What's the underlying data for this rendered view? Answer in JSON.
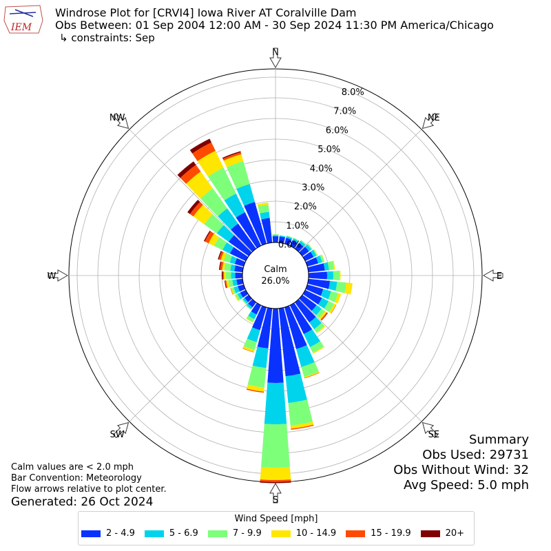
{
  "header": {
    "title": "Windrose Plot for [CRVI4] Iowa River  AT Coralville Dam",
    "obs_between": "Obs Between: 01 Sep 2004 12:00 AM - 30 Sep 2024 11:30 PM America/Chicago",
    "constraints": "↳ constraints: Sep",
    "logo_text": "IEM"
  },
  "summary": {
    "heading": "Summary",
    "obs_used": "Obs Used: 29731",
    "obs_without_wind": "Obs Without Wind: 32",
    "avg_speed": "Avg Speed: 5.0 mph"
  },
  "notes": {
    "calm": "Calm values are < 2.0 mph",
    "convention": "Bar Convention: Meteorology",
    "flow": "Flow arrows relative to plot center."
  },
  "generated": "Generated: 26 Oct 2024",
  "chart_data": {
    "type": "windrose",
    "title": "Windrose Plot for [CRVI4] Iowa River  AT Coralville Dam",
    "calm_label": "Calm",
    "calm_percent": "26.0%",
    "radial_ticks": [
      "0.0%",
      "1.0%",
      "2.0%",
      "3.0%",
      "4.0%",
      "5.0%",
      "6.0%",
      "7.0%",
      "8.0%"
    ],
    "radial_range": [
      0,
      8.4
    ],
    "directions": [
      "N",
      "NE",
      "E",
      "SE",
      "S",
      "SW",
      "W",
      "NW"
    ],
    "legend_title": "Wind Speed [mph]",
    "bins": [
      {
        "label": "2 - 4.9",
        "color": "#0a32ff"
      },
      {
        "label": "5 - 6.9",
        "color": "#00d4ec"
      },
      {
        "label": "7 - 9.9",
        "color": "#7dff7a"
      },
      {
        "label": "10 - 14.9",
        "color": "#ffe600"
      },
      {
        "label": "15 - 19.9",
        "color": "#ff4a00"
      },
      {
        "label": "20+",
        "color": "#800000"
      }
    ],
    "sectors": [
      {
        "dir": 0,
        "values": [
          0.3,
          0.05,
          0.05,
          0,
          0,
          0
        ]
      },
      {
        "dir": 10,
        "values": [
          0.3,
          0.05,
          0,
          0,
          0,
          0
        ]
      },
      {
        "dir": 20,
        "values": [
          0.3,
          0.08,
          0.03,
          0,
          0,
          0
        ]
      },
      {
        "dir": 30,
        "values": [
          0.3,
          0.1,
          0.03,
          0,
          0,
          0
        ]
      },
      {
        "dir": 40,
        "values": [
          0.35,
          0.12,
          0.05,
          0,
          0,
          0
        ]
      },
      {
        "dir": 50,
        "values": [
          0.4,
          0.15,
          0.05,
          0,
          0,
          0
        ]
      },
      {
        "dir": 60,
        "values": [
          0.45,
          0.15,
          0.05,
          0.02,
          0,
          0
        ]
      },
      {
        "dir": 70,
        "values": [
          0.55,
          0.2,
          0.1,
          0.02,
          0,
          0
        ]
      },
      {
        "dir": 80,
        "values": [
          0.8,
          0.2,
          0.25,
          0.05,
          0,
          0
        ]
      },
      {
        "dir": 90,
        "values": [
          0.9,
          0.3,
          0.3,
          0.05,
          0,
          0
        ]
      },
      {
        "dir": 100,
        "values": [
          1.05,
          0.35,
          0.45,
          0.3,
          0,
          0
        ]
      },
      {
        "dir": 110,
        "values": [
          0.8,
          0.4,
          0.35,
          0.15,
          0,
          0
        ]
      },
      {
        "dir": 120,
        "values": [
          0.9,
          0.35,
          0.3,
          0.1,
          0.02,
          0
        ]
      },
      {
        "dir": 130,
        "values": [
          0.85,
          0.3,
          0.2,
          0.1,
          0.05,
          0.02
        ]
      },
      {
        "dir": 140,
        "values": [
          1.2,
          0.4,
          0.2,
          0.05,
          0,
          0
        ]
      },
      {
        "dir": 150,
        "values": [
          1.55,
          0.7,
          0.3,
          0.05,
          0,
          0
        ]
      },
      {
        "dir": 160,
        "values": [
          2.1,
          0.9,
          0.5,
          0.05,
          0.02,
          0
        ]
      },
      {
        "dir": 170,
        "values": [
          3.3,
          1.3,
          1.1,
          0.15,
          0.05,
          0
        ]
      },
      {
        "dir": 180,
        "values": [
          3.6,
          2.0,
          2.1,
          0.6,
          0.1,
          0.05
        ]
      },
      {
        "dir": 190,
        "values": [
          1.95,
          0.95,
          0.95,
          0.2,
          0.05,
          0
        ]
      },
      {
        "dir": 200,
        "values": [
          1.15,
          0.6,
          0.4,
          0.1,
          0.02,
          0
        ]
      },
      {
        "dir": 210,
        "values": [
          0.5,
          0.25,
          0.15,
          0.03,
          0,
          0
        ]
      },
      {
        "dir": 220,
        "values": [
          0.3,
          0.1,
          0.05,
          0,
          0,
          0
        ]
      },
      {
        "dir": 230,
        "values": [
          0.25,
          0.1,
          0.05,
          0,
          0,
          0
        ]
      },
      {
        "dir": 240,
        "values": [
          0.3,
          0.15,
          0.1,
          0.05,
          0,
          0
        ]
      },
      {
        "dir": 250,
        "values": [
          0.3,
          0.2,
          0.1,
          0.05,
          0.02,
          0
        ]
      },
      {
        "dir": 260,
        "values": [
          0.3,
          0.2,
          0.2,
          0.1,
          0.05,
          0.03
        ]
      },
      {
        "dir": 270,
        "values": [
          0.35,
          0.2,
          0.25,
          0.1,
          0.05,
          0.05
        ]
      },
      {
        "dir": 280,
        "values": [
          0.4,
          0.2,
          0.3,
          0.1,
          0.1,
          0.05
        ]
      },
      {
        "dir": 290,
        "values": [
          0.45,
          0.25,
          0.3,
          0.15,
          0.1,
          0.05
        ]
      },
      {
        "dir": 300,
        "values": [
          0.85,
          0.4,
          0.45,
          0.3,
          0.2,
          0.05
        ]
      },
      {
        "dir": 310,
        "values": [
          1.2,
          0.7,
          0.75,
          0.65,
          0.2,
          0.15
        ]
      },
      {
        "dir": 320,
        "values": [
          1.5,
          0.9,
          1.2,
          1.0,
          0.4,
          0.2
        ]
      },
      {
        "dir": 330,
        "values": [
          1.8,
          1.0,
          1.4,
          0.9,
          0.45,
          0.2
        ]
      },
      {
        "dir": 340,
        "values": [
          2.1,
          0.9,
          1.15,
          0.35,
          0.1,
          0.05
        ]
      },
      {
        "dir": 350,
        "values": [
          1.2,
          0.3,
          0.35,
          0.1,
          0,
          0
        ]
      }
    ]
  }
}
